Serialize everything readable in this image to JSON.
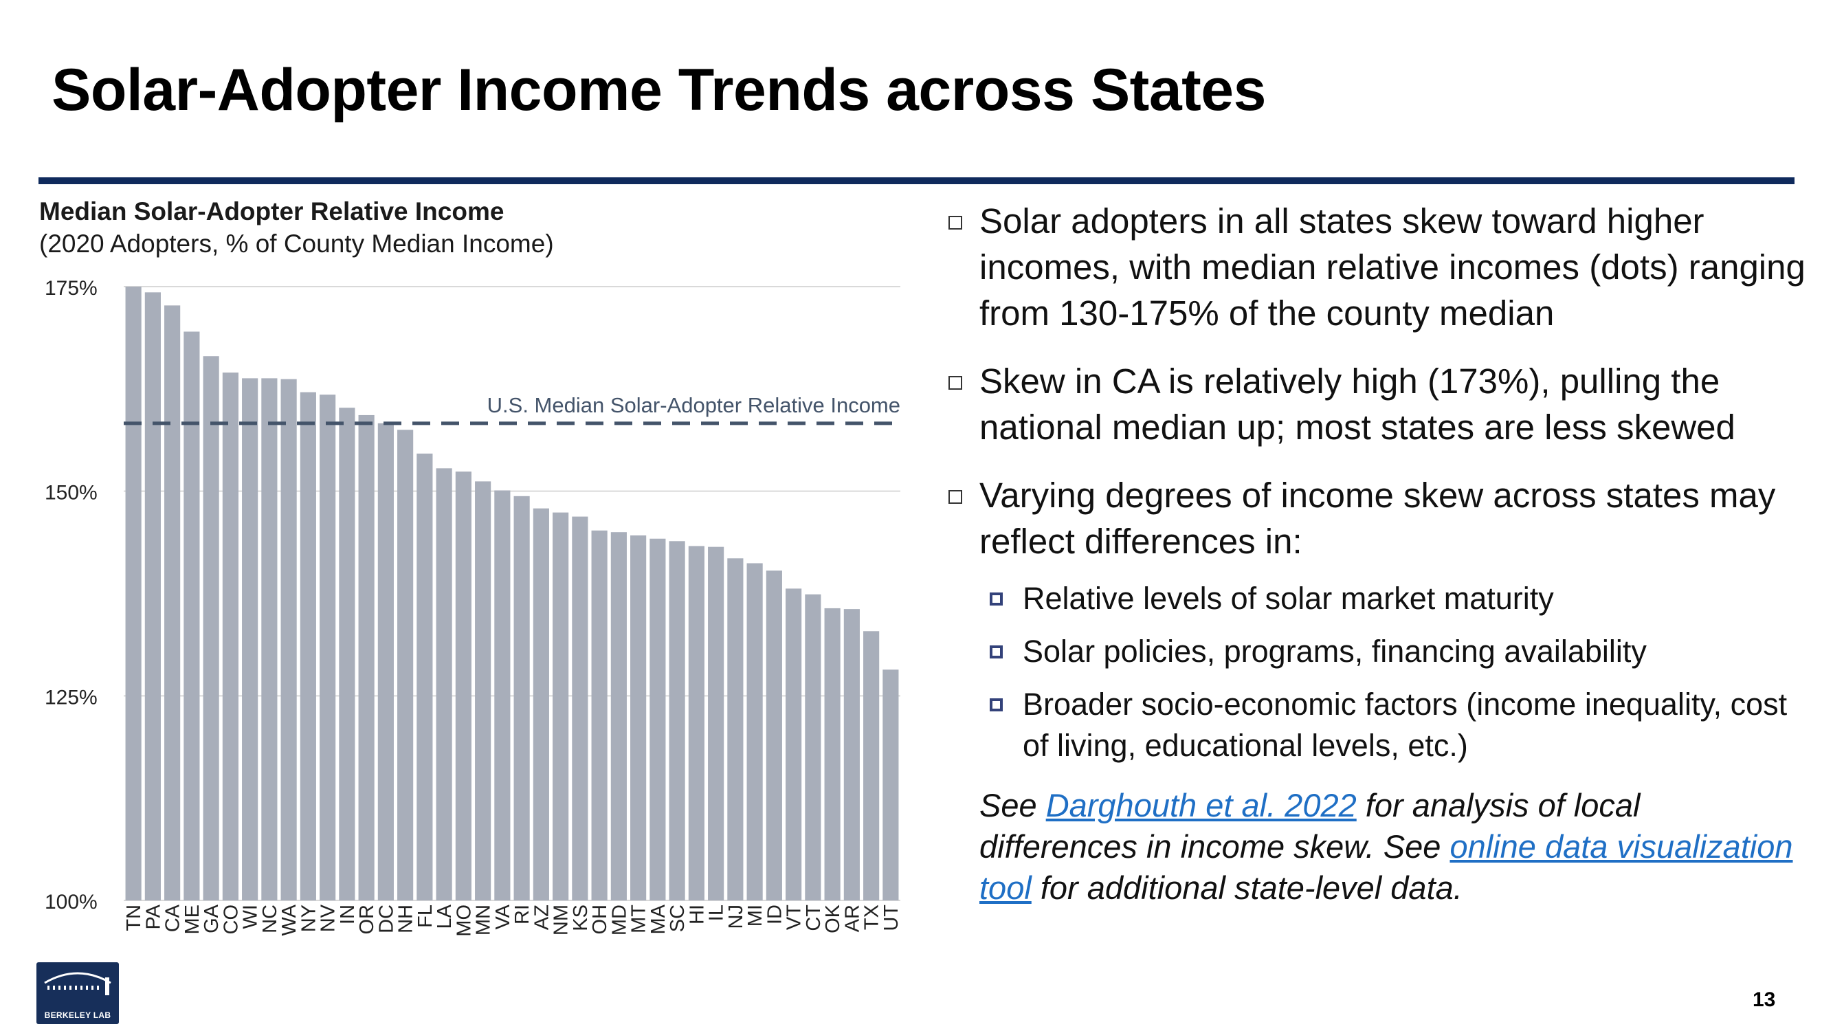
{
  "slide": {
    "title": "Solar-Adopter Income Trends across States",
    "page_number": "13",
    "logo_text": "BERKELEY LAB"
  },
  "bullets": [
    {
      "text": "Solar adopters in all states skew toward higher incomes, with median relative incomes (dots) ranging from 130-175% of the county median"
    },
    {
      "text": "Skew in CA is relatively high (173%), pulling the national median up; most states are less skewed"
    },
    {
      "text": "Varying degrees of income skew across states may reflect differences in:"
    }
  ],
  "sub_bullets": [
    {
      "text": "Relative levels of solar market maturity"
    },
    {
      "text": "Solar policies, programs, financing availability"
    },
    {
      "text": "Broader socio-economic factors (income inequality, cost of living, educational levels, etc.)"
    }
  ],
  "note": {
    "prefix": "See ",
    "link1": "Darghouth et al. 2022",
    "middle": " for analysis of local differences in income skew. See ",
    "link2": "online data visualization tool",
    "suffix": " for additional state-level data."
  },
  "colors": {
    "bar": "#a8aeba",
    "reference_line": "#44546a",
    "gridline": "#d9d9d9",
    "title_rule": "#0f2a5c",
    "link": "#1f6fc5"
  },
  "chart_data": {
    "type": "bar",
    "title": "Median Solar-Adopter Relative Income",
    "subtitle": "(2020 Adopters, % of County Median Income)",
    "xlabel": "",
    "ylabel": "",
    "ylim": [
      100,
      175
    ],
    "yticks": [
      100,
      125,
      150,
      175
    ],
    "ytick_labels": [
      "100%",
      "125%",
      "150%",
      "175%"
    ],
    "grid": true,
    "categories": [
      "TN",
      "PA",
      "CA",
      "ME",
      "GA",
      "CO",
      "WI",
      "NC",
      "WA",
      "NY",
      "NV",
      "IN",
      "OR",
      "DC",
      "NH",
      "FL",
      "LA",
      "MO",
      "MN",
      "VA",
      "RI",
      "AZ",
      "NM",
      "KS",
      "OH",
      "MD",
      "MT",
      "MA",
      "SC",
      "HI",
      "IL",
      "NJ",
      "MI",
      "ID",
      "VT",
      "CT",
      "OK",
      "AR",
      "TX",
      "UT"
    ],
    "values": [
      175.0,
      174.3,
      172.7,
      169.5,
      166.5,
      164.5,
      163.8,
      163.8,
      163.7,
      162.1,
      161.8,
      160.2,
      159.3,
      158.3,
      157.5,
      154.6,
      152.8,
      152.4,
      151.2,
      150.1,
      149.4,
      147.9,
      147.4,
      146.9,
      145.2,
      145.0,
      144.6,
      144.2,
      143.9,
      143.3,
      143.2,
      141.8,
      141.2,
      140.3,
      138.1,
      137.4,
      135.7,
      135.6,
      132.9,
      128.2
    ],
    "reference_lines": [
      {
        "label": "U.S. Median Solar-Adopter Relative Income",
        "value": 158.3,
        "style": "dashed"
      }
    ]
  }
}
